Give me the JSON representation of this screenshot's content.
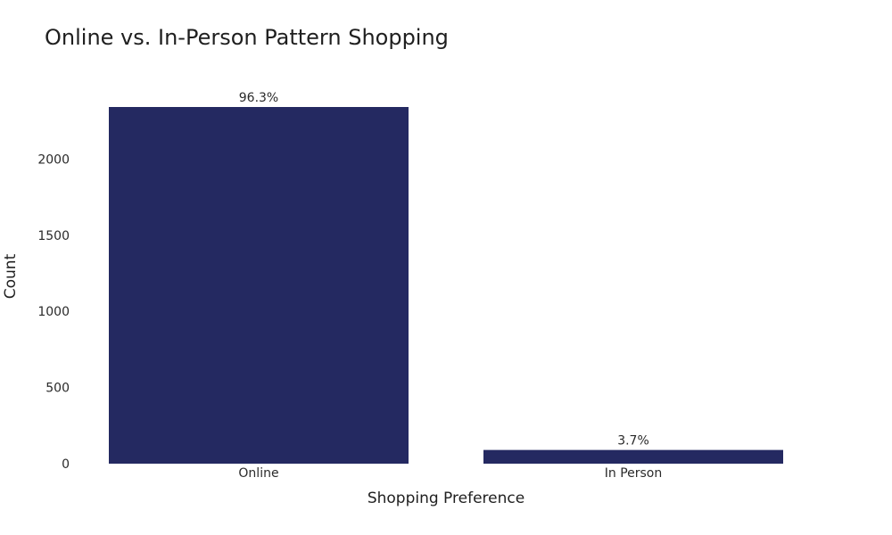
{
  "chart_data": {
    "type": "bar",
    "title": "Online vs. In-Person Pattern Shopping",
    "xlabel": "Shopping Preference",
    "ylabel": "Count",
    "categories": [
      "Online",
      "In Person"
    ],
    "values": [
      2342,
      90
    ],
    "data_labels": [
      "96.3%",
      "3.7%"
    ],
    "ylim": [
      0,
      2342
    ],
    "yticks": [
      0,
      500,
      1000,
      1500,
      2000
    ],
    "ytick_labels": [
      "0",
      "500",
      "1000",
      "1500",
      "2000"
    ],
    "grid": false,
    "bar_color": "#242961"
  }
}
